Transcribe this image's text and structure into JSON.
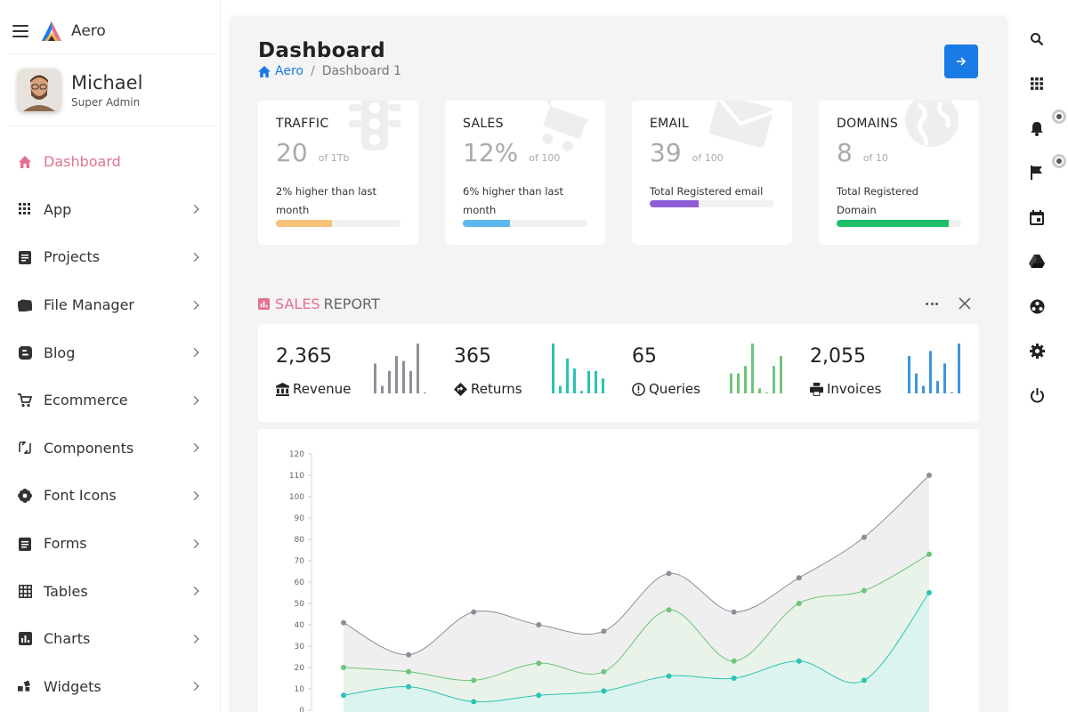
{
  "app": {
    "name": "Aero"
  },
  "user": {
    "name": "Michael",
    "role": "Super Admin"
  },
  "sidebar": {
    "items": [
      {
        "label": "Dashboard",
        "icon": "home-icon",
        "active": true
      },
      {
        "label": "App",
        "icon": "apps-grid-icon"
      },
      {
        "label": "Projects",
        "icon": "assignment-icon"
      },
      {
        "label": "File Manager",
        "icon": "folder-icon"
      },
      {
        "label": "Blog",
        "icon": "blogger-icon"
      },
      {
        "label": "Ecommerce",
        "icon": "shopping-cart-icon"
      },
      {
        "label": "Components",
        "icon": "swap-icon"
      },
      {
        "label": "Font Icons",
        "icon": "flower-icon"
      },
      {
        "label": "Forms",
        "icon": "forms-icon"
      },
      {
        "label": "Tables",
        "icon": "table-icon"
      },
      {
        "label": "Charts",
        "icon": "chart-icon"
      },
      {
        "label": "Widgets",
        "icon": "widgets-icon"
      }
    ]
  },
  "header": {
    "title": "Dashboard",
    "breadcrumb": {
      "home": "Aero",
      "separator": "/",
      "current": "Dashboard 1"
    }
  },
  "stats": [
    {
      "title": "TRAFFIC",
      "value": "20",
      "of": "of 1Tb",
      "desc": "2% higher than last month",
      "progress": 0.45,
      "color": "#f5c278"
    },
    {
      "title": "SALES",
      "value": "12%",
      "of": "of 100",
      "desc": "6% higher than last month",
      "progress": 0.38,
      "color": "#5db8f0"
    },
    {
      "title": "EMAIL",
      "value": "39",
      "of": "of 100",
      "desc": "Total Registered email",
      "progress": 0.39,
      "color": "#8e5ed6"
    },
    {
      "title": "DOMAINS",
      "value": "8",
      "of": "of 10",
      "desc": "Total Registered Domain",
      "progress": 0.9,
      "color": "#1fbf6a"
    }
  ],
  "report": {
    "title_accent": "SALES",
    "title_rest": "REPORT",
    "items": [
      {
        "value": "2,365",
        "label": "Revenue",
        "icon": "bank-icon",
        "color": "#8a8f99",
        "bars": [
          0.6,
          0.15,
          0.45,
          0.75,
          0.65,
          0.45,
          1.0,
          0.02
        ]
      },
      {
        "value": "365",
        "label": "Returns",
        "icon": "directions-icon",
        "color": "#2bc3b4",
        "bars": [
          1.0,
          0.15,
          0.7,
          0.5,
          0.05,
          0.45,
          0.45,
          0.3
        ]
      },
      {
        "value": "65",
        "label": "Queries",
        "icon": "alert-circle-icon",
        "color": "#6ec47a",
        "bars": [
          0.4,
          0.4,
          0.55,
          1.0,
          0.1,
          0.02,
          0.55,
          0.75
        ]
      },
      {
        "value": "2,055",
        "label": "Invoices",
        "icon": "printer-icon",
        "color": "#3d95e0",
        "bars": [
          0.75,
          0.4,
          0.15,
          0.85,
          0.25,
          0.6,
          0.02,
          1.0
        ]
      }
    ]
  },
  "chart_data": {
    "type": "area",
    "ylim": [
      0,
      120
    ],
    "yticks": [
      "0",
      "10",
      "20",
      "30",
      "40",
      "50",
      "60",
      "70",
      "80",
      "90",
      "100",
      "110",
      "120"
    ],
    "grid": false,
    "series": [
      {
        "values": [
          41,
          26,
          46,
          40,
          37,
          64,
          46,
          62,
          81,
          110
        ],
        "color": "#8a8f99",
        "fill": "#ececec"
      },
      {
        "values": [
          20,
          18,
          14,
          22,
          18,
          47,
          23,
          50,
          56,
          73
        ],
        "color": "#6ec47a",
        "fill": "#e8f3e8"
      },
      {
        "values": [
          7,
          11,
          4,
          7,
          9,
          16,
          15,
          23,
          14,
          55
        ],
        "color": "#2bc3b4",
        "fill": "#d9f3f0"
      }
    ]
  },
  "rightbar": {
    "icons": [
      "search-icon",
      "apps-icon",
      "bell-icon",
      "flag-icon",
      "calendar-icon",
      "drive-icon",
      "user-circle-icon",
      "settings-icon",
      "power-icon"
    ]
  }
}
